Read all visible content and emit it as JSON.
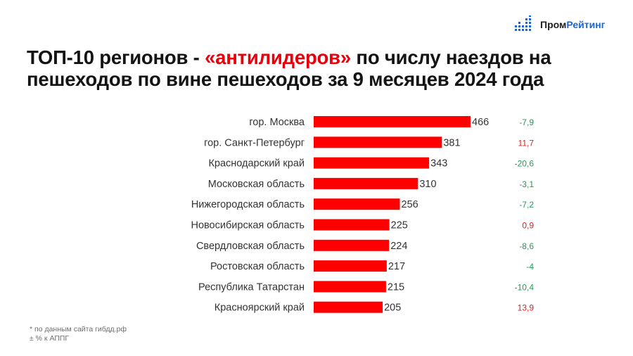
{
  "brand": {
    "name_part1": "Пром",
    "name_part2": "Рейтинг",
    "accent_color": "#1a66d9"
  },
  "title": {
    "part1": "ТОП-10 регионов - ",
    "highlight": "«антилидеров»",
    "part2": " по числу наездов на пешеходов по вине пешеходов за 9 месяцев 2024 года",
    "highlight_color": "#e8000b"
  },
  "notes": {
    "source": "* по данным сайта гибдд.рф",
    "change": "± % к АППГ"
  },
  "chart_data": {
    "type": "bar",
    "orientation": "horizontal",
    "categories": [
      "гор. Москва",
      "гор. Санкт-Петербург",
      "Краснодарский край",
      "Московская область",
      "Нижегородская область",
      "Новосибирская область",
      "Свердловская область",
      "Ростовская область",
      "Республика Татарстан",
      "Красноярский край"
    ],
    "values": [
      466,
      381,
      343,
      310,
      256,
      225,
      224,
      217,
      215,
      205
    ],
    "changes": [
      "-7,9",
      "11,7",
      "-20,6",
      "-3,1",
      "-7,2",
      "0,9",
      "-8,6",
      "-4",
      "-10,4",
      "13,9"
    ],
    "bar_color": "#ff0000",
    "negative_change_color": "#1f9d55",
    "positive_change_color": "#e02020",
    "xlim": [
      0,
      466
    ],
    "grid": false,
    "legend": "none"
  }
}
